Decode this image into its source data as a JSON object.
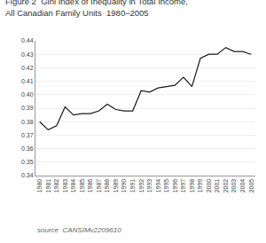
{
  "chart_data": {
    "type": "line",
    "title": "Figure 2  Gini Index of Inequality in Total Income,\nAll Canadian Family Units  1980–2005",
    "annotations": [
      "source  CANSIMv2209610"
    ],
    "x": [
      1980,
      1981,
      1982,
      1983,
      1984,
      1985,
      1986,
      1987,
      1988,
      1989,
      1990,
      1991,
      1992,
      1993,
      1994,
      1995,
      1996,
      1997,
      1998,
      1999,
      2000,
      2001,
      2002,
      2003,
      2004,
      2005
    ],
    "values": [
      0.38,
      0.374,
      0.377,
      0.391,
      0.385,
      0.386,
      0.386,
      0.388,
      0.393,
      0.389,
      0.388,
      0.388,
      0.403,
      0.402,
      0.405,
      0.406,
      0.407,
      0.413,
      0.406,
      0.427,
      0.43,
      0.43,
      0.435,
      0.432,
      0.432,
      0.43
    ],
    "color": "#1a1a1a",
    "xlim": [
      1979.5,
      2005.5
    ],
    "xticks": [
      1980,
      1981,
      1982,
      1983,
      1984,
      1985,
      1986,
      1987,
      1988,
      1989,
      1990,
      1991,
      1992,
      1993,
      1994,
      1995,
      1996,
      1997,
      1998,
      1999,
      2000,
      2001,
      2002,
      2003,
      2004,
      2005
    ],
    "ylim": [
      0.34,
      0.44
    ],
    "yticks": [
      0.34,
      0.35,
      0.36,
      0.37,
      0.38,
      0.39,
      {
        "value": 0.4,
        "label": "0.40"
      },
      0.41,
      0.42,
      0.43,
      0.44
    ],
    "grid": true
  }
}
